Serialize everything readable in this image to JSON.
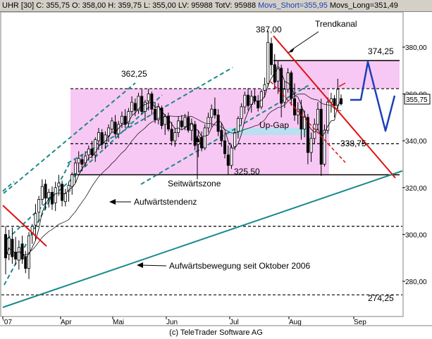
{
  "header": {
    "instrument": "UHR [30]",
    "close": "C: 355,75",
    "open": "O: 358,00",
    "high": "H: 359,75",
    "low": "L: 355,00",
    "lv": "LV: 95988",
    "totv": "TotV: 95988",
    "movs_short": "Movs_Short=355,95",
    "movs_long": "Movs_Long=351,49"
  },
  "footer": {
    "credit": "(c) TeleTrader Software AG"
  },
  "chart_data": {
    "type": "candlestick",
    "x_tick_labels": [
      "'07",
      "Apr",
      "Mai",
      "Jun",
      "Jul",
      "Aug",
      "Sep"
    ],
    "y_ticks": [
      280,
      300,
      320,
      340,
      360,
      380
    ],
    "y_tick_labels": [
      "280,00",
      "300,00",
      "320,00",
      "340,00",
      "360,00",
      "380,00"
    ],
    "ylim": [
      265,
      395
    ],
    "last_price_label": "355,75",
    "annotations": {
      "trendkanal": "Trendkanal",
      "up_gap": "Up-Gap",
      "seitwaertszone": "Seitwärtszone",
      "aufwaertstendenz": "Aufwärtstendenz",
      "aufwaertsbewegung": "Aufwärtsbewegung seit Oktober 2006"
    },
    "levels": [
      {
        "label": "387,00",
        "value": 387.0
      },
      {
        "label": "374,25",
        "value": 374.25
      },
      {
        "label": "362,25",
        "value": 362.25
      },
      {
        "label": "338,75",
        "value": 338.75
      },
      {
        "label": "325,50",
        "value": 325.5
      },
      {
        "label": "274,25",
        "value": 274.25
      }
    ],
    "horizontal_lines": [
      {
        "value": 374.25,
        "style": "solid"
      },
      {
        "value": 362.25,
        "style": "dashed"
      },
      {
        "value": 338.75,
        "style": "dashed"
      },
      {
        "value": 325.5,
        "style": "solid"
      },
      {
        "value": 303.5,
        "style": "dashed"
      },
      {
        "value": 274.25,
        "style": "dashed"
      }
    ],
    "colors": {
      "zone_fill": "#f8c8f4",
      "gap_fill": "#b8e0f0",
      "channel": "#1a8a8a",
      "trend_red": "#e01010",
      "forecast": "#1d3fb8",
      "candle": "#000000",
      "ma_short": "#000000"
    },
    "candles": [
      {
        "o": 300.0,
        "h": 303.5,
        "l": 283.0,
        "c": 290.0
      },
      {
        "o": 291.5,
        "h": 302.0,
        "l": 289.0,
        "c": 298.5
      },
      {
        "o": 298.0,
        "h": 303.0,
        "l": 287.5,
        "c": 290.5
      },
      {
        "o": 292.5,
        "h": 299.0,
        "l": 287.0,
        "c": 289.5
      },
      {
        "o": 289.0,
        "h": 297.5,
        "l": 285.0,
        "c": 294.5
      },
      {
        "o": 296.0,
        "h": 299.5,
        "l": 287.5,
        "c": 289.5
      },
      {
        "o": 290.5,
        "h": 293.0,
        "l": 283.5,
        "c": 285.5
      },
      {
        "o": 285.5,
        "h": 301.0,
        "l": 281.0,
        "c": 299.5
      },
      {
        "o": 300.5,
        "h": 304.5,
        "l": 296.0,
        "c": 303.5
      },
      {
        "o": 304.0,
        "h": 313.0,
        "l": 297.5,
        "c": 309.0
      },
      {
        "o": 309.5,
        "h": 316.5,
        "l": 305.5,
        "c": 315.0
      },
      {
        "o": 315.0,
        "h": 323.5,
        "l": 312.5,
        "c": 320.5
      },
      {
        "o": 321.5,
        "h": 323.5,
        "l": 310.5,
        "c": 315.5
      },
      {
        "o": 315.5,
        "h": 319.5,
        "l": 311.5,
        "c": 318.0
      },
      {
        "o": 318.0,
        "h": 320.5,
        "l": 310.5,
        "c": 313.0
      },
      {
        "o": 313.5,
        "h": 322.5,
        "l": 310.0,
        "c": 320.0
      },
      {
        "o": 320.5,
        "h": 325.5,
        "l": 316.5,
        "c": 322.0
      },
      {
        "o": 321.5,
        "h": 323.0,
        "l": 312.0,
        "c": 314.5
      },
      {
        "o": 314.0,
        "h": 319.5,
        "l": 312.0,
        "c": 317.5
      },
      {
        "o": 318.5,
        "h": 322.5,
        "l": 314.0,
        "c": 321.0
      },
      {
        "o": 320.5,
        "h": 326.5,
        "l": 317.0,
        "c": 325.5
      },
      {
        "o": 326.0,
        "h": 332.0,
        "l": 322.0,
        "c": 330.5
      },
      {
        "o": 330.5,
        "h": 335.5,
        "l": 326.5,
        "c": 332.5
      },
      {
        "o": 332.0,
        "h": 334.0,
        "l": 327.0,
        "c": 330.0
      },
      {
        "o": 330.5,
        "h": 335.5,
        "l": 329.0,
        "c": 333.5
      },
      {
        "o": 334.0,
        "h": 338.0,
        "l": 331.5,
        "c": 336.5
      },
      {
        "o": 336.5,
        "h": 340.0,
        "l": 332.5,
        "c": 334.0
      },
      {
        "o": 334.0,
        "h": 341.5,
        "l": 331.0,
        "c": 340.5
      },
      {
        "o": 340.0,
        "h": 345.5,
        "l": 336.0,
        "c": 343.5
      },
      {
        "o": 343.5,
        "h": 345.0,
        "l": 336.5,
        "c": 338.5
      },
      {
        "o": 339.0,
        "h": 344.0,
        "l": 336.5,
        "c": 342.5
      },
      {
        "o": 342.0,
        "h": 347.0,
        "l": 339.5,
        "c": 345.5
      },
      {
        "o": 345.0,
        "h": 350.0,
        "l": 343.5,
        "c": 348.5
      },
      {
        "o": 348.0,
        "h": 351.0,
        "l": 341.5,
        "c": 343.0
      },
      {
        "o": 343.0,
        "h": 348.5,
        "l": 341.0,
        "c": 347.0
      },
      {
        "o": 347.5,
        "h": 352.5,
        "l": 345.5,
        "c": 350.5
      },
      {
        "o": 350.5,
        "h": 353.5,
        "l": 345.5,
        "c": 347.0
      },
      {
        "o": 347.5,
        "h": 354.0,
        "l": 346.0,
        "c": 352.5
      },
      {
        "o": 352.5,
        "h": 359.0,
        "l": 351.0,
        "c": 356.5
      },
      {
        "o": 356.0,
        "h": 358.0,
        "l": 350.5,
        "c": 353.0
      },
      {
        "o": 353.0,
        "h": 360.5,
        "l": 351.5,
        "c": 359.0
      },
      {
        "o": 359.0,
        "h": 362.0,
        "l": 351.0,
        "c": 352.5
      },
      {
        "o": 352.5,
        "h": 357.5,
        "l": 348.5,
        "c": 356.5
      },
      {
        "o": 357.0,
        "h": 362.25,
        "l": 353.0,
        "c": 360.0
      },
      {
        "o": 360.0,
        "h": 361.0,
        "l": 351.0,
        "c": 353.5
      },
      {
        "o": 353.5,
        "h": 356.5,
        "l": 347.5,
        "c": 349.0
      },
      {
        "o": 349.0,
        "h": 356.0,
        "l": 347.0,
        "c": 354.5
      },
      {
        "o": 354.0,
        "h": 355.0,
        "l": 345.0,
        "c": 346.5
      },
      {
        "o": 347.0,
        "h": 351.5,
        "l": 342.5,
        "c": 350.5
      },
      {
        "o": 350.5,
        "h": 352.0,
        "l": 344.0,
        "c": 345.0
      },
      {
        "o": 345.0,
        "h": 348.0,
        "l": 338.0,
        "c": 340.0
      },
      {
        "o": 340.0,
        "h": 345.5,
        "l": 337.5,
        "c": 343.5
      },
      {
        "o": 343.5,
        "h": 350.5,
        "l": 341.5,
        "c": 348.5
      },
      {
        "o": 348.5,
        "h": 351.0,
        "l": 345.0,
        "c": 346.0
      },
      {
        "o": 346.0,
        "h": 351.5,
        "l": 344.5,
        "c": 350.0
      },
      {
        "o": 350.0,
        "h": 352.5,
        "l": 343.5,
        "c": 344.5
      },
      {
        "o": 344.5,
        "h": 349.5,
        "l": 340.0,
        "c": 347.5
      },
      {
        "o": 347.0,
        "h": 348.5,
        "l": 336.0,
        "c": 338.0
      },
      {
        "o": 338.5,
        "h": 344.5,
        "l": 333.0,
        "c": 342.0
      },
      {
        "o": 341.5,
        "h": 344.0,
        "l": 335.5,
        "c": 337.0
      },
      {
        "o": 337.0,
        "h": 347.0,
        "l": 336.0,
        "c": 345.5
      },
      {
        "o": 345.5,
        "h": 352.0,
        "l": 343.5,
        "c": 350.0
      },
      {
        "o": 350.0,
        "h": 355.5,
        "l": 346.0,
        "c": 353.5
      },
      {
        "o": 353.5,
        "h": 358.5,
        "l": 349.5,
        "c": 351.0
      },
      {
        "o": 351.0,
        "h": 353.5,
        "l": 342.0,
        "c": 344.0
      },
      {
        "o": 344.5,
        "h": 347.5,
        "l": 337.5,
        "c": 340.0
      },
      {
        "o": 340.0,
        "h": 343.5,
        "l": 332.5,
        "c": 334.5
      },
      {
        "o": 334.0,
        "h": 338.0,
        "l": 325.5,
        "c": 329.5
      },
      {
        "o": 329.5,
        "h": 338.5,
        "l": 328.0,
        "c": 337.0
      },
      {
        "o": 337.5,
        "h": 345.0,
        "l": 336.0,
        "c": 343.5
      },
      {
        "o": 344.0,
        "h": 350.5,
        "l": 341.0,
        "c": 349.5
      },
      {
        "o": 349.5,
        "h": 356.0,
        "l": 347.0,
        "c": 354.5
      },
      {
        "o": 354.5,
        "h": 361.0,
        "l": 351.5,
        "c": 359.5
      },
      {
        "o": 359.5,
        "h": 362.5,
        "l": 353.0,
        "c": 355.0
      },
      {
        "o": 355.5,
        "h": 361.5,
        "l": 352.0,
        "c": 359.0
      },
      {
        "o": 359.0,
        "h": 362.0,
        "l": 355.5,
        "c": 357.0
      },
      {
        "o": 357.0,
        "h": 359.5,
        "l": 352.5,
        "c": 354.0
      },
      {
        "o": 354.5,
        "h": 362.0,
        "l": 353.5,
        "c": 361.0
      },
      {
        "o": 361.5,
        "h": 367.0,
        "l": 358.5,
        "c": 364.0
      },
      {
        "o": 364.5,
        "h": 387.0,
        "l": 363.0,
        "c": 382.0
      },
      {
        "o": 381.5,
        "h": 384.0,
        "l": 368.0,
        "c": 372.5
      },
      {
        "o": 372.5,
        "h": 377.0,
        "l": 362.0,
        "c": 365.0
      },
      {
        "o": 365.5,
        "h": 374.0,
        "l": 360.0,
        "c": 371.5
      },
      {
        "o": 371.0,
        "h": 372.5,
        "l": 350.0,
        "c": 356.0
      },
      {
        "o": 356.5,
        "h": 365.5,
        "l": 354.0,
        "c": 362.0
      },
      {
        "o": 362.0,
        "h": 371.0,
        "l": 360.5,
        "c": 369.0
      },
      {
        "o": 369.0,
        "h": 370.0,
        "l": 355.0,
        "c": 358.0
      },
      {
        "o": 358.0,
        "h": 364.5,
        "l": 348.5,
        "c": 351.0
      },
      {
        "o": 351.0,
        "h": 356.5,
        "l": 347.0,
        "c": 353.5
      },
      {
        "o": 353.5,
        "h": 357.5,
        "l": 340.5,
        "c": 345.0
      },
      {
        "o": 345.0,
        "h": 353.0,
        "l": 341.5,
        "c": 350.0
      },
      {
        "o": 350.0,
        "h": 351.5,
        "l": 330.0,
        "c": 335.0
      },
      {
        "o": 335.0,
        "h": 343.5,
        "l": 331.0,
        "c": 341.0
      },
      {
        "o": 341.0,
        "h": 349.5,
        "l": 338.5,
        "c": 347.0
      },
      {
        "o": 347.0,
        "h": 356.5,
        "l": 344.5,
        "c": 353.5
      },
      {
        "o": 353.5,
        "h": 358.0,
        "l": 325.0,
        "c": 330.0
      },
      {
        "o": 330.0,
        "h": 347.0,
        "l": 329.0,
        "c": 344.5
      },
      {
        "o": 344.5,
        "h": 358.5,
        "l": 343.0,
        "c": 356.5
      },
      {
        "o": 356.5,
        "h": 360.5,
        "l": 352.0,
        "c": 358.0
      },
      {
        "o": 358.0,
        "h": 359.5,
        "l": 350.0,
        "c": 355.0
      },
      {
        "o": 355.0,
        "h": 366.5,
        "l": 353.5,
        "c": 362.0
      },
      {
        "o": 358.0,
        "h": 359.75,
        "l": 355.0,
        "c": 355.75
      }
    ]
  }
}
